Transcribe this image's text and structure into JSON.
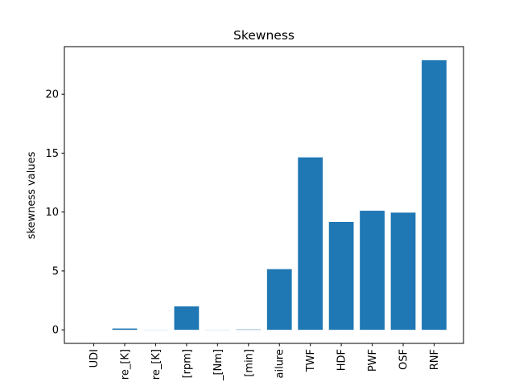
{
  "chart_data": {
    "type": "bar",
    "title": "Skewness",
    "xlabel": "",
    "ylabel": "skewness values",
    "categories": [
      "UDI",
      "re_[K]",
      "re_[K]",
      "[rpm]",
      "_[Nm]",
      "[min]",
      "ailure",
      "TWF",
      "HDF",
      "PWF",
      "OSF",
      "RNF"
    ],
    "values": [
      0.0,
      0.11,
      0.01,
      1.99,
      -0.01,
      0.03,
      5.15,
      14.64,
      9.16,
      10.11,
      9.95,
      22.89
    ],
    "ylim": [
      -1.15,
      24.04
    ],
    "yticks": [
      0,
      5,
      10,
      15,
      20
    ],
    "grid": false,
    "bar_color": "#1f77b4"
  }
}
